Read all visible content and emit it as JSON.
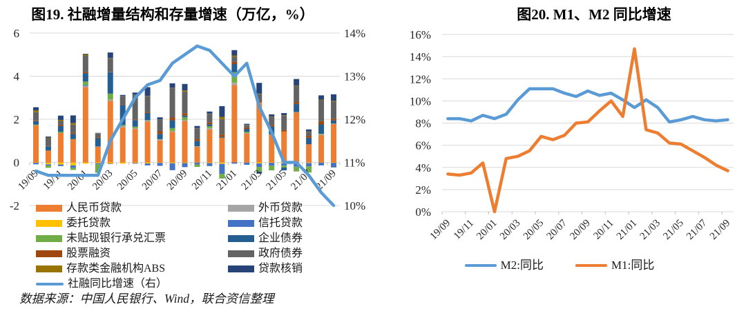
{
  "chart_data": [
    {
      "type": "combo-stacked-bar-line",
      "title": "图19. 社融增量结构和存量增速（万亿，%）",
      "source_note": "数据来源：中国人民银行、Wind，联合资信整理",
      "categories": [
        "19/09",
        "19/10",
        "19/11",
        "19/12",
        "20/01",
        "20/02",
        "20/03",
        "20/04",
        "20/05",
        "20/06",
        "20/07",
        "20/08",
        "20/09",
        "20/10",
        "20/11",
        "20/12",
        "21/01",
        "21/02",
        "21/03",
        "21/04",
        "21/05",
        "21/06",
        "21/07",
        "21/08",
        "21/09"
      ],
      "x_labels_shown": [
        "19/09",
        "19/11",
        "20/01",
        "20/03",
        "20/05",
        "20/07",
        "20/09",
        "20/11",
        "21/01",
        "21/03",
        "21/05",
        "21/07",
        "21/09"
      ],
      "left_axis": {
        "label_values": [
          "6",
          "4",
          "2",
          "0",
          "-2"
        ],
        "min": -2,
        "max": 6
      },
      "right_axis": {
        "label_values": [
          "14%",
          "13%",
          "12%",
          "11%",
          "10%"
        ],
        "min": 10,
        "max": 14
      },
      "grid": true,
      "legend_position": "bottom-two-columns",
      "series": [
        {
          "key": "rmb-loans",
          "name": "人民币贷款",
          "color": "#ED7D31",
          "values": [
            1.72,
            0.55,
            1.36,
            1.08,
            3.49,
            0.72,
            2.85,
            1.62,
            1.55,
            1.9,
            1.02,
            1.42,
            1.92,
            0.72,
            1.53,
            1.14,
            3.58,
            1.34,
            2.75,
            1.28,
            1.43,
            2.32,
            0.84,
            1.27,
            1.78
          ]
        },
        {
          "key": "fx-loans",
          "name": "外币贷款",
          "color": "#A5A5A5",
          "values": [
            0.0,
            -0.02,
            0.0,
            -0.01,
            0.06,
            0.02,
            0.07,
            0.06,
            0.03,
            0.04,
            0.05,
            0.04,
            0.04,
            0.03,
            0.06,
            -0.01,
            0.11,
            0.02,
            0.03,
            0.02,
            -0.01,
            0.02,
            -0.01,
            0.04,
            0.02
          ]
        },
        {
          "key": "entrusted-loans",
          "name": "委托贷款",
          "color": "#FFC000",
          "values": [
            -0.02,
            -0.07,
            -0.1,
            -0.13,
            -0.06,
            -0.04,
            -0.06,
            -0.06,
            -0.03,
            -0.05,
            -0.02,
            -0.04,
            -0.03,
            -0.01,
            -0.03,
            -0.06,
            0.01,
            -0.01,
            -0.05,
            -0.02,
            -0.04,
            -0.05,
            -0.02,
            -0.01,
            -0.02
          ]
        },
        {
          "key": "trust-loans",
          "name": "信托贷款",
          "color": "#4472C4",
          "values": [
            -0.07,
            -0.06,
            -0.07,
            -0.11,
            0.04,
            -0.05,
            -0.02,
            0.0,
            -0.03,
            -0.09,
            -0.14,
            -0.32,
            -0.19,
            -0.09,
            -0.14,
            -0.46,
            -0.06,
            -0.1,
            -0.16,
            -0.13,
            -0.1,
            -0.15,
            -0.15,
            -0.13,
            -0.21
          ]
        },
        {
          "key": "undiscounted-bankers-acceptance",
          "name": "未贴现银行承兑汇票",
          "color": "#70AD47",
          "values": [
            0.03,
            -0.1,
            0.06,
            -0.1,
            0.16,
            -0.39,
            0.27,
            0.06,
            0.08,
            0.02,
            0.01,
            0.13,
            0.14,
            -0.11,
            0.09,
            -0.22,
            0.49,
            0.06,
            -0.22,
            -0.22,
            -0.09,
            -0.22,
            -0.29,
            0.02,
            -0.01
          ]
        },
        {
          "key": "corporate-bonds",
          "name": "企业债券",
          "color": "#255E91",
          "values": [
            0.16,
            0.19,
            0.26,
            0.24,
            0.39,
            0.38,
            0.99,
            0.93,
            0.3,
            0.33,
            0.24,
            0.36,
            0.07,
            0.25,
            0.09,
            0.04,
            0.37,
            0.13,
            -0.09,
            0.36,
            -0.13,
            0.37,
            0.3,
            0.43,
            0.14
          ]
        },
        {
          "key": "equity-financing",
          "name": "股票融资",
          "color": "#9E480E",
          "values": [
            0.03,
            0.02,
            0.05,
            0.06,
            0.06,
            0.04,
            0.02,
            0.03,
            0.03,
            0.05,
            0.12,
            0.13,
            0.11,
            0.09,
            0.08,
            0.11,
            0.1,
            0.07,
            0.08,
            0.08,
            0.07,
            0.09,
            0.09,
            0.15,
            0.08
          ]
        },
        {
          "key": "government-bonds",
          "name": "政府债券",
          "color": "#636363",
          "values": [
            0.39,
            0.36,
            0.19,
            0.37,
            0.76,
            0.18,
            0.64,
            0.37,
            1.14,
            0.74,
            0.54,
            1.38,
            1.01,
            0.49,
            0.4,
            0.72,
            0.25,
            0.1,
            0.31,
            0.37,
            0.67,
            0.75,
            0.18,
            0.97,
            0.81
          ]
        },
        {
          "key": "depository-abs",
          "name": "存款类金融机构ABS",
          "color": "#997300",
          "values": [
            0.08,
            0.03,
            0.05,
            0.08,
            0.05,
            0.01,
            0.01,
            0.01,
            0.01,
            0.01,
            0.01,
            0.01,
            0.05,
            0.01,
            0.01,
            0.1,
            0.05,
            0.02,
            0.02,
            0.02,
            0.02,
            0.02,
            0.02,
            0.03,
            0.03
          ]
        },
        {
          "key": "loan-writeoffs",
          "name": "贷款核销",
          "color": "#264478",
          "values": [
            0.15,
            0.05,
            0.2,
            0.35,
            0.03,
            0.02,
            0.25,
            0.05,
            0.1,
            0.4,
            0.1,
            0.2,
            0.3,
            0.1,
            0.1,
            0.5,
            0.25,
            0.05,
            0.5,
            0.1,
            0.1,
            0.3,
            0.1,
            0.2,
            0.3
          ]
        }
      ],
      "line_series": {
        "key": "tsf-yoy-growth",
        "name": "社融同比增速（右）",
        "color": "#5B9BD5",
        "axis": "right",
        "values": [
          10.8,
          10.7,
          10.7,
          10.7,
          10.7,
          10.7,
          11.5,
          12.0,
          12.5,
          12.8,
          12.9,
          13.3,
          13.5,
          13.7,
          13.6,
          13.3,
          13.0,
          13.3,
          12.3,
          11.7,
          11.0,
          11.0,
          10.7,
          10.3,
          10.0
        ]
      }
    },
    {
      "type": "line",
      "title": "图20. M1、M2 同比增速",
      "categories": [
        "19/09",
        "19/10",
        "19/11",
        "19/12",
        "20/01",
        "20/02",
        "20/03",
        "20/04",
        "20/05",
        "20/06",
        "20/07",
        "20/08",
        "20/09",
        "20/10",
        "20/11",
        "20/12",
        "21/01",
        "21/02",
        "21/03",
        "21/04",
        "21/05",
        "21/06",
        "21/07",
        "21/08",
        "21/09"
      ],
      "x_labels_shown": [
        "19/09",
        "19/11",
        "20/01",
        "20/03",
        "20/05",
        "20/07",
        "20/09",
        "20/11",
        "21/01",
        "21/03",
        "21/05",
        "21/07",
        "21/09"
      ],
      "y_axis": {
        "label_values": [
          "16%",
          "14%",
          "12%",
          "10%",
          "8%",
          "6%",
          "4%",
          "2%",
          "0%"
        ],
        "min": 0,
        "max": 16
      },
      "grid": true,
      "legend_position": "bottom-center",
      "series": [
        {
          "key": "m2-yoy",
          "name": "M2:同比",
          "color": "#5B9BD5",
          "values": [
            8.4,
            8.4,
            8.2,
            8.7,
            8.4,
            8.8,
            10.1,
            11.1,
            11.1,
            11.1,
            10.7,
            10.4,
            10.9,
            10.5,
            10.7,
            10.1,
            9.4,
            10.1,
            9.4,
            8.1,
            8.3,
            8.6,
            8.3,
            8.2,
            8.3
          ]
        },
        {
          "key": "m1-yoy",
          "name": "M1:同比",
          "color": "#ED7D31",
          "values": [
            3.4,
            3.3,
            3.5,
            4.4,
            0.0,
            4.8,
            5.0,
            5.5,
            6.8,
            6.5,
            6.9,
            8.0,
            8.1,
            9.1,
            10.0,
            8.6,
            14.7,
            7.4,
            7.1,
            6.2,
            6.1,
            5.5,
            4.9,
            4.2,
            3.7
          ]
        }
      ]
    }
  ]
}
